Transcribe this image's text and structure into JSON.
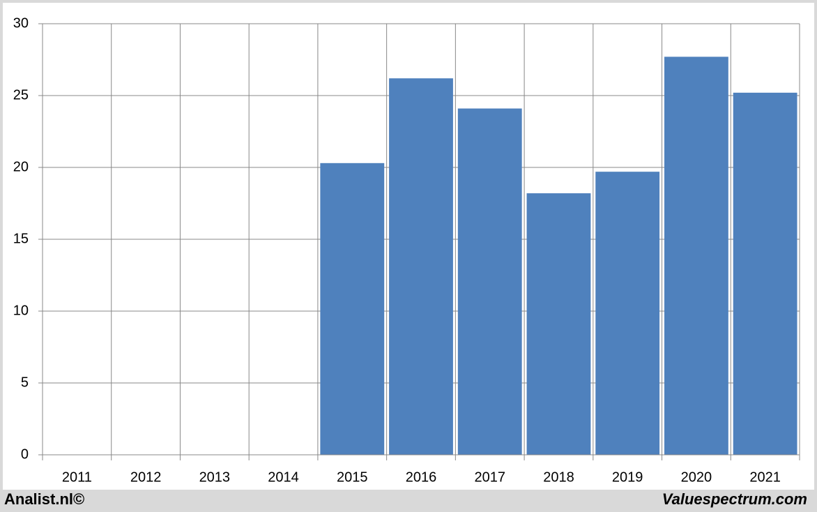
{
  "chart_data": {
    "type": "bar",
    "categories": [
      "2011",
      "2012",
      "2013",
      "2014",
      "2015",
      "2016",
      "2017",
      "2018",
      "2019",
      "2020",
      "2021"
    ],
    "values": [
      null,
      null,
      null,
      null,
      20.3,
      26.2,
      24.1,
      18.2,
      19.7,
      27.7,
      25.2
    ],
    "color": "#4f81bd",
    "ylim": [
      0,
      30
    ],
    "yticks": [
      0,
      5,
      10,
      15,
      20,
      25,
      30
    ],
    "grid": true
  },
  "footer": {
    "left": "Analist.nl©",
    "right": "Valuespectrum.com"
  }
}
